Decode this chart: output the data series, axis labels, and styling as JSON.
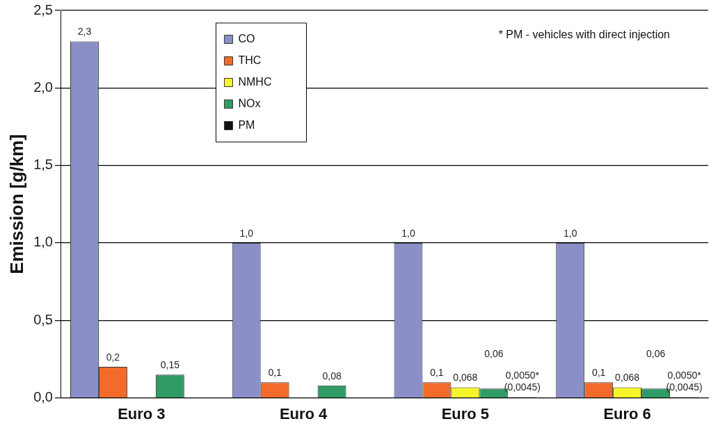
{
  "chart_data": {
    "type": "bar",
    "ylabel": "Emission [g/km]",
    "categories": [
      "Euro 3",
      "Euro 4",
      "Euro 5",
      "Euro 6"
    ],
    "series": [
      {
        "name": "CO",
        "color": "#8b8fc8",
        "values": [
          2.3,
          1.0,
          1.0,
          1.0
        ],
        "value_labels": [
          "2,3",
          "1,0",
          "1,0",
          "1,0"
        ]
      },
      {
        "name": "THC",
        "color": "#f26b2a",
        "values": [
          0.2,
          0.1,
          0.1,
          0.1
        ],
        "value_labels": [
          "0,2",
          "0,1",
          "0,1",
          "0,1"
        ]
      },
      {
        "name": "NMHC",
        "color": "#f5f52a",
        "values": [
          null,
          null,
          0.068,
          0.068
        ],
        "value_labels": [
          null,
          null,
          "0,068",
          "0,068"
        ]
      },
      {
        "name": "NOx",
        "color": "#2e9c64",
        "values": [
          0.15,
          0.08,
          0.06,
          0.06
        ],
        "value_labels": [
          "0,15",
          "0,08",
          "0,06",
          "0,06"
        ]
      },
      {
        "name": "PM",
        "color": "#111111",
        "values": [
          null,
          null,
          0.005,
          0.005
        ],
        "value_labels": [
          null,
          null,
          "0,0050* (0,0045)",
          "0,0050* (0,0045)"
        ]
      }
    ],
    "ylim": [
      0,
      2.5
    ],
    "yticks": [
      {
        "value": 0,
        "label": "0,0"
      },
      {
        "value": 0.5,
        "label": "0,5"
      },
      {
        "value": 1,
        "label": "1,0"
      },
      {
        "value": 1.5,
        "label": "1,5"
      },
      {
        "value": 2,
        "label": "2,0"
      },
      {
        "value": 2.5,
        "label": "2,5"
      }
    ],
    "grid": "y",
    "legend": "top left",
    "annotations": [
      "* PM - vehicles with direct injection"
    ]
  }
}
